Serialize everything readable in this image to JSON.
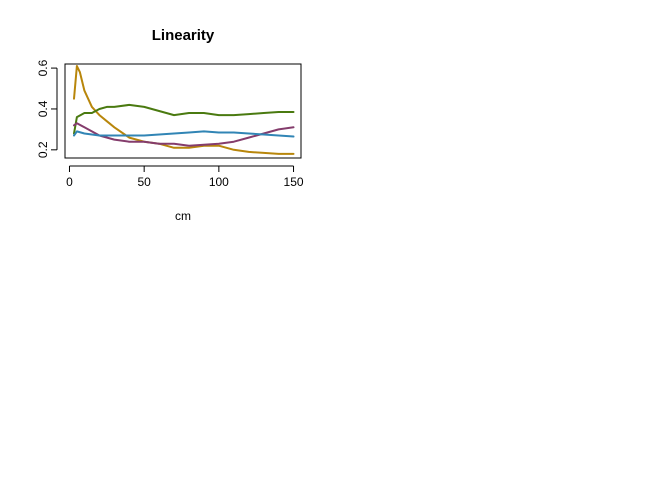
{
  "chart_data": {
    "type": "line",
    "title": "Linearity",
    "xlabel": "cm",
    "ylabel": "",
    "xlim": [
      -3,
      155
    ],
    "ylim": [
      0.16,
      0.62
    ],
    "xticks": [
      0,
      50,
      100,
      150
    ],
    "yticks": [
      0.2,
      0.4,
      0.6
    ],
    "xtick_labels": [
      "0",
      "50",
      "100",
      "150"
    ],
    "ytick_labels": [
      "0.2",
      "0.4",
      "0.6"
    ],
    "grid": false,
    "legend": "none",
    "series": [
      {
        "color": "#B8860B",
        "x": [
          3,
          5,
          7,
          10,
          15,
          20,
          25,
          30,
          40,
          50,
          60,
          70,
          80,
          90,
          100,
          110,
          120,
          130,
          140,
          150
        ],
        "y": [
          0.45,
          0.61,
          0.58,
          0.49,
          0.41,
          0.37,
          0.34,
          0.31,
          0.26,
          0.24,
          0.23,
          0.21,
          0.21,
          0.22,
          0.22,
          0.2,
          0.19,
          0.185,
          0.18,
          0.18
        ]
      },
      {
        "color": "#4A7A10",
        "x": [
          3,
          5,
          10,
          15,
          20,
          25,
          30,
          40,
          50,
          60,
          70,
          80,
          90,
          100,
          110,
          120,
          130,
          140,
          150
        ],
        "y": [
          0.28,
          0.36,
          0.38,
          0.38,
          0.4,
          0.41,
          0.41,
          0.42,
          0.41,
          0.39,
          0.37,
          0.38,
          0.38,
          0.37,
          0.37,
          0.375,
          0.38,
          0.385,
          0.385
        ]
      },
      {
        "color": "#843C6C",
        "x": [
          3,
          5,
          10,
          15,
          20,
          30,
          40,
          50,
          60,
          70,
          80,
          90,
          100,
          110,
          120,
          130,
          140,
          150
        ],
        "y": [
          0.32,
          0.33,
          0.31,
          0.29,
          0.27,
          0.25,
          0.24,
          0.24,
          0.23,
          0.23,
          0.22,
          0.225,
          0.23,
          0.24,
          0.26,
          0.28,
          0.3,
          0.31
        ]
      },
      {
        "color": "#3185B5",
        "x": [
          3,
          5,
          10,
          20,
          30,
          40,
          50,
          60,
          70,
          80,
          90,
          100,
          110,
          120,
          130,
          140,
          150
        ],
        "y": [
          0.27,
          0.29,
          0.28,
          0.27,
          0.27,
          0.27,
          0.27,
          0.275,
          0.28,
          0.285,
          0.29,
          0.285,
          0.285,
          0.28,
          0.275,
          0.27,
          0.265
        ]
      }
    ]
  }
}
